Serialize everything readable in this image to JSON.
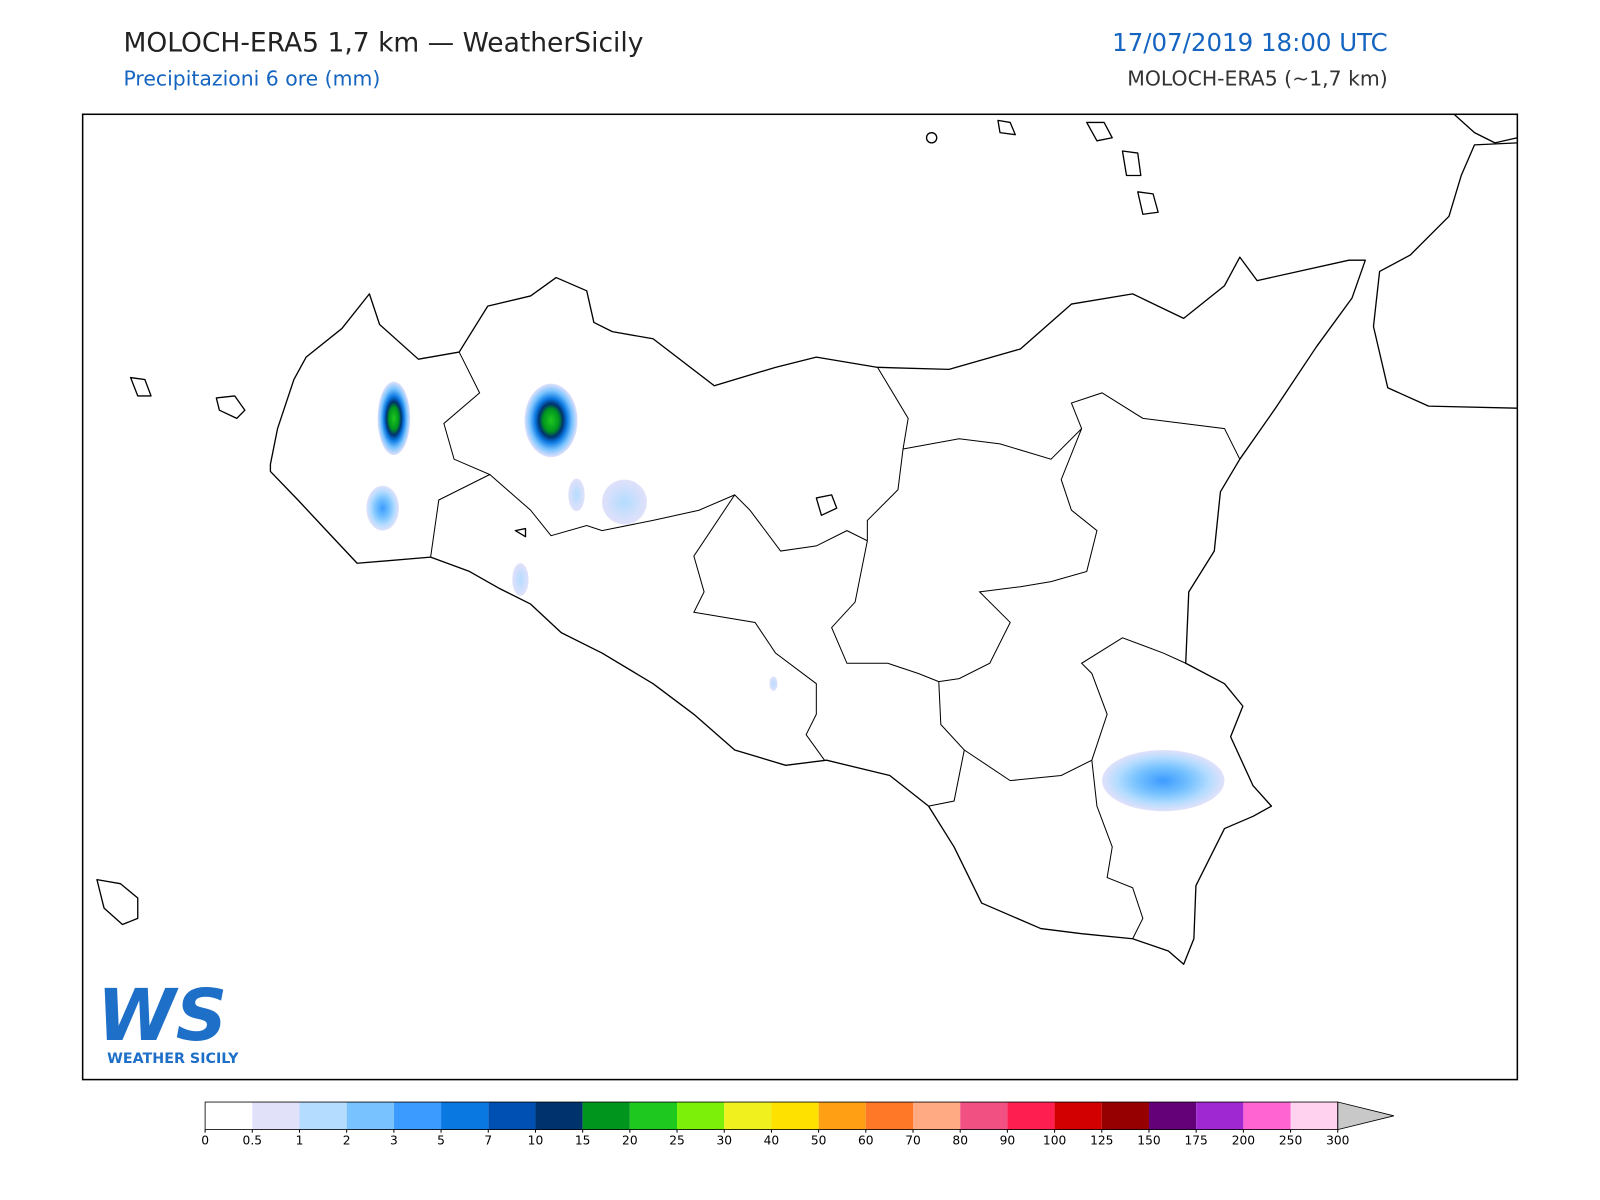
{
  "header": {
    "title": "MOLOCH-ERA5 1,7 km — WeatherSicily",
    "subtitle": "Precipitazioni 6 ore (mm)",
    "date": "17/07/2019 18:00 UTC",
    "model": "MOLOCH-ERA5 (~1,7 km)"
  },
  "logo": {
    "mark": "WS",
    "text": "WEATHER SICILY"
  },
  "colorbar": {
    "ticks": [
      0,
      0.5,
      1,
      2,
      3,
      5,
      7,
      10,
      15,
      20,
      25,
      30,
      40,
      50,
      60,
      70,
      80,
      90,
      100,
      125,
      150,
      175,
      200,
      250,
      300
    ],
    "colors": [
      "#ffffff",
      "#e1e1fa",
      "#b4dcff",
      "#78c3ff",
      "#3c9bff",
      "#0a78e1",
      "#0050b4",
      "#00326e",
      "#00961e",
      "#1ec81e",
      "#7df00a",
      "#f0f01e",
      "#ffe100",
      "#ffa014",
      "#ff7828",
      "#ffaa82",
      "#f05082",
      "#ff1e50",
      "#d20000",
      "#960000",
      "#640078",
      "#a028d2",
      "#ff64d2",
      "#ffd2f0"
    ],
    "extend_color": "#c8c8c8"
  }
}
